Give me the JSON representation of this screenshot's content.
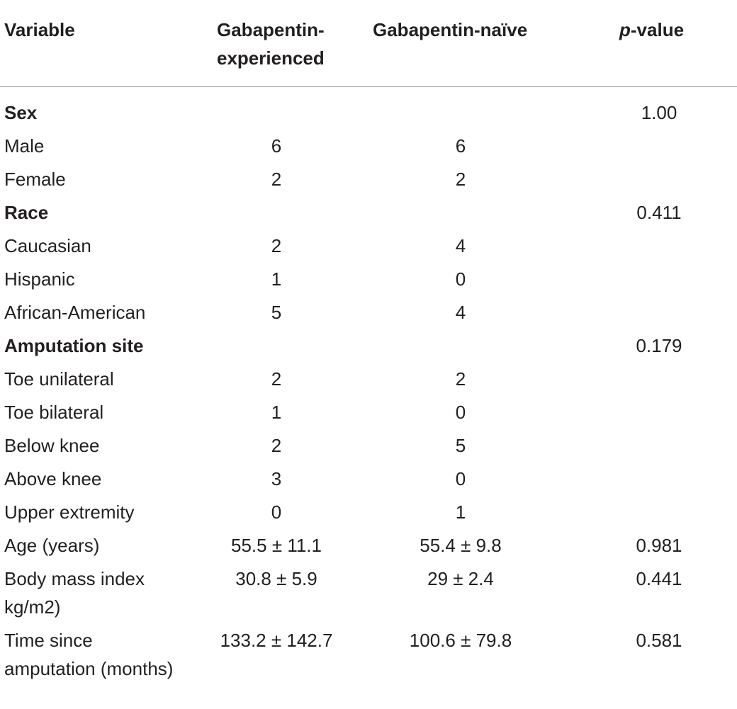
{
  "header": {
    "variable": "Variable",
    "experienced": "Gabapentin-experienced",
    "naive": "Gabapentin-naïve",
    "p_italic": "p",
    "p_rest": "-value"
  },
  "rows": [
    {
      "label": "Sex",
      "exp": "",
      "naive": "",
      "p": "1.00",
      "bold": true
    },
    {
      "label": "Male",
      "exp": "6",
      "naive": "6",
      "p": ""
    },
    {
      "label": "Female",
      "exp": "2",
      "naive": "2",
      "p": ""
    },
    {
      "label": "Race",
      "exp": "",
      "naive": "",
      "p": "0.411",
      "bold": true
    },
    {
      "label": "Caucasian",
      "exp": "2",
      "naive": "4",
      "p": ""
    },
    {
      "label": "Hispanic",
      "exp": "1",
      "naive": "0",
      "p": ""
    },
    {
      "label": "African-American",
      "exp": "5",
      "naive": "4",
      "p": ""
    },
    {
      "label": "Amputation site",
      "exp": "",
      "naive": "",
      "p": "0.179",
      "bold": true
    },
    {
      "label": "Toe unilateral",
      "exp": "2",
      "naive": "2",
      "p": ""
    },
    {
      "label": "Toe bilateral",
      "exp": "1",
      "naive": "0",
      "p": ""
    },
    {
      "label": "Below knee",
      "exp": "2",
      "naive": "5",
      "p": ""
    },
    {
      "label": "Above knee",
      "exp": "3",
      "naive": "0",
      "p": ""
    },
    {
      "label": "Upper extremity",
      "exp": "0",
      "naive": "1",
      "p": ""
    },
    {
      "label": "Age (years)",
      "exp": "55.5 ± 11.1",
      "naive": "55.4 ± 9.8",
      "p": "0.981"
    },
    {
      "label": "Body mass index kg/m2)",
      "exp": "30.8 ± 5.9",
      "naive": "29 ± 2.4",
      "p": "0.441"
    },
    {
      "label": "Time since amputation (months)",
      "exp": "133.2 ± 142.7",
      "naive": "100.6 ± 79.8",
      "p": "0.581"
    }
  ]
}
